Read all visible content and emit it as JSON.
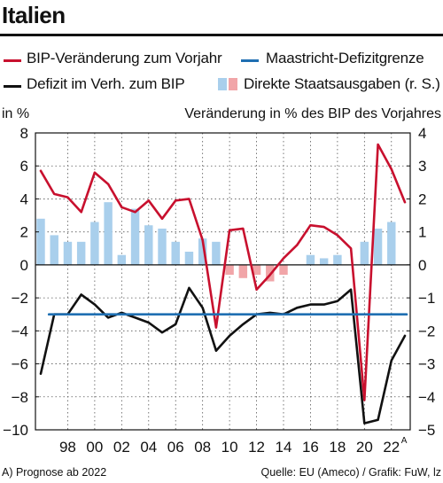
{
  "title": "Italien",
  "legend": [
    {
      "label": "BIP-Veränderung zum Vorjahr",
      "color": "#c8102e",
      "kind": "line"
    },
    {
      "label": "Maastricht-Defizitgrenze",
      "color": "#1f6fb2",
      "kind": "line"
    },
    {
      "label": "Defizit im Verh. zum BIP",
      "color": "#111111",
      "kind": "line"
    },
    {
      "label": "Direkte Staatsausgaben (r. S.)",
      "color_pos": "#a9cfec",
      "color_neg": "#f1a5a8",
      "kind": "bars"
    }
  ],
  "left_axis_caption": "in %",
  "right_axis_caption": "Veränderung in % des BIP des Vorjahres",
  "footnote": "A) Prognose ab 2022",
  "source": "Quelle: EU (Ameco) / Grafik: FuW, lz",
  "chart_data": {
    "type": "line",
    "x": [
      1996,
      1997,
      1998,
      1999,
      2000,
      2001,
      2002,
      2003,
      2004,
      2005,
      2006,
      2007,
      2008,
      2009,
      2010,
      2011,
      2012,
      2013,
      2014,
      2015,
      2016,
      2017,
      2018,
      2019,
      2020,
      2021,
      2022,
      2023
    ],
    "x_tick_labels": [
      "98",
      "00",
      "02",
      "04",
      "06",
      "08",
      "10",
      "12",
      "14",
      "16",
      "18",
      "20",
      "22"
    ],
    "x_tick_years": [
      1998,
      2000,
      2002,
      2004,
      2006,
      2008,
      2010,
      2012,
      2014,
      2016,
      2018,
      2020,
      2022
    ],
    "x_tick_superscript": {
      "2022": "A"
    },
    "left_axis": {
      "label": "in %",
      "ylim": [
        -10,
        8
      ],
      "ticks": [
        8,
        6,
        4,
        2,
        0,
        -2,
        -4,
        -6,
        -8,
        -10
      ]
    },
    "right_axis": {
      "label": "Veränderung in % des BIP des Vorjahres",
      "ylim": [
        -5,
        4
      ],
      "ticks": [
        4,
        3,
        2,
        1,
        0,
        -1,
        -2,
        -3,
        -4,
        -5
      ]
    },
    "series": [
      {
        "name": "BIP-Veränderung zum Vorjahr",
        "axis": "left",
        "color": "#c8102e",
        "values": [
          5.7,
          4.3,
          4.1,
          3.2,
          5.6,
          4.9,
          3.5,
          3.2,
          3.9,
          2.8,
          3.9,
          4.0,
          1.5,
          -3.8,
          2.1,
          2.2,
          -1.5,
          -0.6,
          0.4,
          1.2,
          2.4,
          2.3,
          1.8,
          1.0,
          -8.2,
          7.3,
          5.8,
          3.8
        ]
      },
      {
        "name": "Defizit im Verh. zum BIP",
        "axis": "left",
        "color": "#111111",
        "values": [
          -6.6,
          -3.0,
          -3.0,
          -1.8,
          -2.4,
          -3.2,
          -2.9,
          -3.2,
          -3.5,
          -4.1,
          -3.6,
          -1.4,
          -2.6,
          -5.2,
          -4.3,
          -3.6,
          -3.0,
          -2.9,
          -3.0,
          -2.6,
          -2.4,
          -2.4,
          -2.2,
          -1.5,
          -9.6,
          -9.4,
          -5.8,
          -4.3
        ]
      },
      {
        "name": "Maastricht-Defizitgrenze",
        "axis": "left",
        "color": "#1f6fb2",
        "values": [
          -3,
          -3,
          -3,
          -3,
          -3,
          -3,
          -3,
          -3,
          -3,
          -3,
          -3,
          -3,
          -3,
          -3,
          -3,
          -3,
          -3,
          -3,
          -3,
          -3,
          -3,
          -3,
          -3,
          -3,
          -3,
          -3,
          -3,
          -3
        ]
      },
      {
        "name": "Direkte Staatsausgaben (r. S.)",
        "axis": "right",
        "type": "bar",
        "values": [
          1.4,
          0.9,
          0.7,
          0.7,
          1.3,
          1.9,
          0.3,
          1.7,
          1.2,
          1.1,
          0.7,
          0.4,
          0.8,
          0.7,
          -0.3,
          -0.4,
          -0.3,
          -0.5,
          -0.3,
          0.0,
          0.3,
          0.2,
          0.3,
          0.0,
          0.7,
          1.1,
          1.3,
          0.0
        ]
      }
    ]
  }
}
